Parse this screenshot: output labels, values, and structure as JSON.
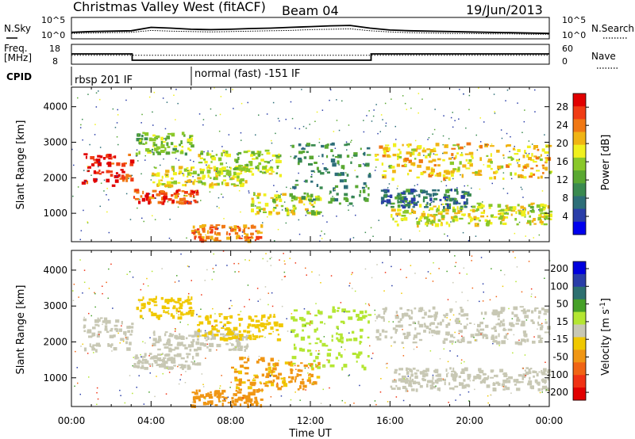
{
  "header": {
    "station": "Christmas Valley West (fitACF)",
    "beam": "Beam 04",
    "date": "19/Jun/2013"
  },
  "chart_data": [
    {
      "type": "line",
      "name": "noise-panel",
      "left_label": "N.Sky",
      "right_label": "N.Search",
      "left_ticks": [
        "10^5",
        "10^0"
      ],
      "right_ticks": [
        "10^5",
        "10^0"
      ],
      "x": [
        0,
        1,
        2,
        3,
        4,
        5,
        6,
        7,
        8,
        9,
        10,
        11,
        12,
        13,
        14,
        15,
        16,
        17,
        18,
        19,
        20,
        21,
        22,
        23,
        24
      ],
      "sky_log10": [
        1.3,
        1.5,
        1.6,
        1.7,
        2.6,
        2.4,
        2.1,
        2.0,
        2.1,
        2.3,
        2.4,
        2.6,
        2.8,
        3.0,
        3.1,
        2.4,
        1.9,
        1.7,
        1.6,
        1.5,
        1.4,
        1.3,
        1.2,
        1.1,
        1.0
      ],
      "search_log10": [
        1.0,
        1.1,
        1.2,
        1.3,
        1.8,
        1.6,
        1.5,
        1.4,
        1.5,
        1.6,
        1.7,
        1.8,
        2.0,
        2.1,
        2.2,
        1.7,
        1.4,
        1.2,
        1.1,
        1.0,
        1.0,
        0.9,
        0.9,
        0.8,
        0.8
      ]
    },
    {
      "type": "line",
      "name": "freq-panel",
      "left_label_1": "Freq.",
      "left_label_2": "[MHz]",
      "right_label": "Nave",
      "left_ticks": [
        "18",
        "8"
      ],
      "right_ticks": [
        "60",
        "0"
      ],
      "freq_steps": [
        {
          "from": 0,
          "to": 3.05,
          "value": 15.5
        },
        {
          "from": 3.05,
          "to": 15.05,
          "value": 10.5
        },
        {
          "from": 15.05,
          "to": 24,
          "value": 15.5
        }
      ],
      "nave": 28
    },
    {
      "type": "table",
      "name": "cpid-panel",
      "label": "CPID",
      "modes": [
        {
          "start": 0,
          "text": "rbsp 201 IF"
        },
        {
          "start": 6.0,
          "text": "normal (fast) -151 IF"
        }
      ]
    },
    {
      "type": "heatmap",
      "name": "power-panel",
      "ylabel": "Slant Range [km]",
      "yticks": [
        1000,
        2000,
        3000,
        4000
      ],
      "ylim": [
        200,
        4550
      ],
      "xlim": [
        0,
        24
      ],
      "colorbar_label": "Power [dB]",
      "colorbar_ticks": [
        4,
        8,
        12,
        16,
        20,
        24,
        28
      ],
      "colorbar_range": [
        0,
        31
      ],
      "colors": [
        "#0000ee",
        "#2a3ea8",
        "#2d6e78",
        "#3a8a50",
        "#5aa832",
        "#8ac82a",
        "#f0f01e",
        "#f0b414",
        "#f07814",
        "#f03c14",
        "#e10000"
      ],
      "bands": [
        {
          "t0": 0.5,
          "t1": 3.0,
          "r0": 1800,
          "r1": 2700,
          "value": 28
        },
        {
          "t0": 3.1,
          "t1": 6.3,
          "r0": 1300,
          "r1": 1700,
          "value": 26
        },
        {
          "t0": 4.0,
          "t1": 8.8,
          "r0": 1800,
          "r1": 2350,
          "value": 18
        },
        {
          "t0": 6.3,
          "t1": 10.5,
          "r0": 2100,
          "r1": 2800,
          "value": 16
        },
        {
          "t0": 9.0,
          "t1": 12.4,
          "r0": 1000,
          "r1": 1600,
          "value": 17
        },
        {
          "t0": 11.0,
          "t1": 15.0,
          "r0": 1300,
          "r1": 3000,
          "value": 10
        },
        {
          "t0": 15.2,
          "t1": 24.0,
          "r0": 2000,
          "r1": 3000,
          "value": 20
        },
        {
          "t0": 16.0,
          "t1": 24.0,
          "r0": 700,
          "r1": 1300,
          "value": 18
        },
        {
          "t0": 6.0,
          "t1": 9.5,
          "r0": 250,
          "r1": 700,
          "value": 24
        },
        {
          "t0": 15.5,
          "t1": 20.0,
          "r0": 1200,
          "r1": 1700,
          "value": 8
        },
        {
          "t0": 3.2,
          "t1": 6.0,
          "r0": 2700,
          "r1": 3300,
          "value": 14
        }
      ]
    },
    {
      "type": "heatmap",
      "name": "velocity-panel",
      "ylabel": "Slant Range [km]",
      "yticks": [
        1000,
        2000,
        3000,
        4000
      ],
      "ylim": [
        200,
        4550
      ],
      "xlim": [
        0,
        24
      ],
      "xticks": [
        "00:00",
        "04:00",
        "08:00",
        "12:00",
        "16:00",
        "20:00",
        "00:00"
      ],
      "xlabel": "Time UT",
      "colorbar_label": "Velocity [m s^-1]",
      "colorbar_ticks": [
        200,
        100,
        50,
        15,
        -15,
        -50,
        -100,
        -200
      ],
      "colors": [
        "#0000dd",
        "#2a3ea8",
        "#2d7070",
        "#46a028",
        "#b4e632",
        "#c8c8b4",
        "#f0c800",
        "#f09614",
        "#f06414",
        "#f03214",
        "#e10000"
      ],
      "bands": [
        {
          "t0": 0.5,
          "t1": 3.0,
          "r0": 1800,
          "r1": 2700,
          "value": 0
        },
        {
          "t0": 3.1,
          "t1": 6.3,
          "r0": 1300,
          "r1": 1700,
          "value": 0
        },
        {
          "t0": 4.0,
          "t1": 8.8,
          "r0": 1800,
          "r1": 2350,
          "value": 0
        },
        {
          "t0": 6.3,
          "t1": 10.5,
          "r0": 2100,
          "r1": 2800,
          "value": -30
        },
        {
          "t0": 8.0,
          "t1": 12.4,
          "r0": 700,
          "r1": 1600,
          "value": -70
        },
        {
          "t0": 11.0,
          "t1": 15.0,
          "r0": 1300,
          "r1": 3000,
          "value": 30
        },
        {
          "t0": 15.2,
          "t1": 24.0,
          "r0": 2000,
          "r1": 3000,
          "value": 0
        },
        {
          "t0": 16.0,
          "t1": 24.0,
          "r0": 700,
          "r1": 1300,
          "value": 0
        },
        {
          "t0": 6.0,
          "t1": 9.5,
          "r0": 250,
          "r1": 700,
          "value": -80
        },
        {
          "t0": 3.2,
          "t1": 6.0,
          "r0": 2700,
          "r1": 3300,
          "value": -40
        }
      ]
    }
  ]
}
